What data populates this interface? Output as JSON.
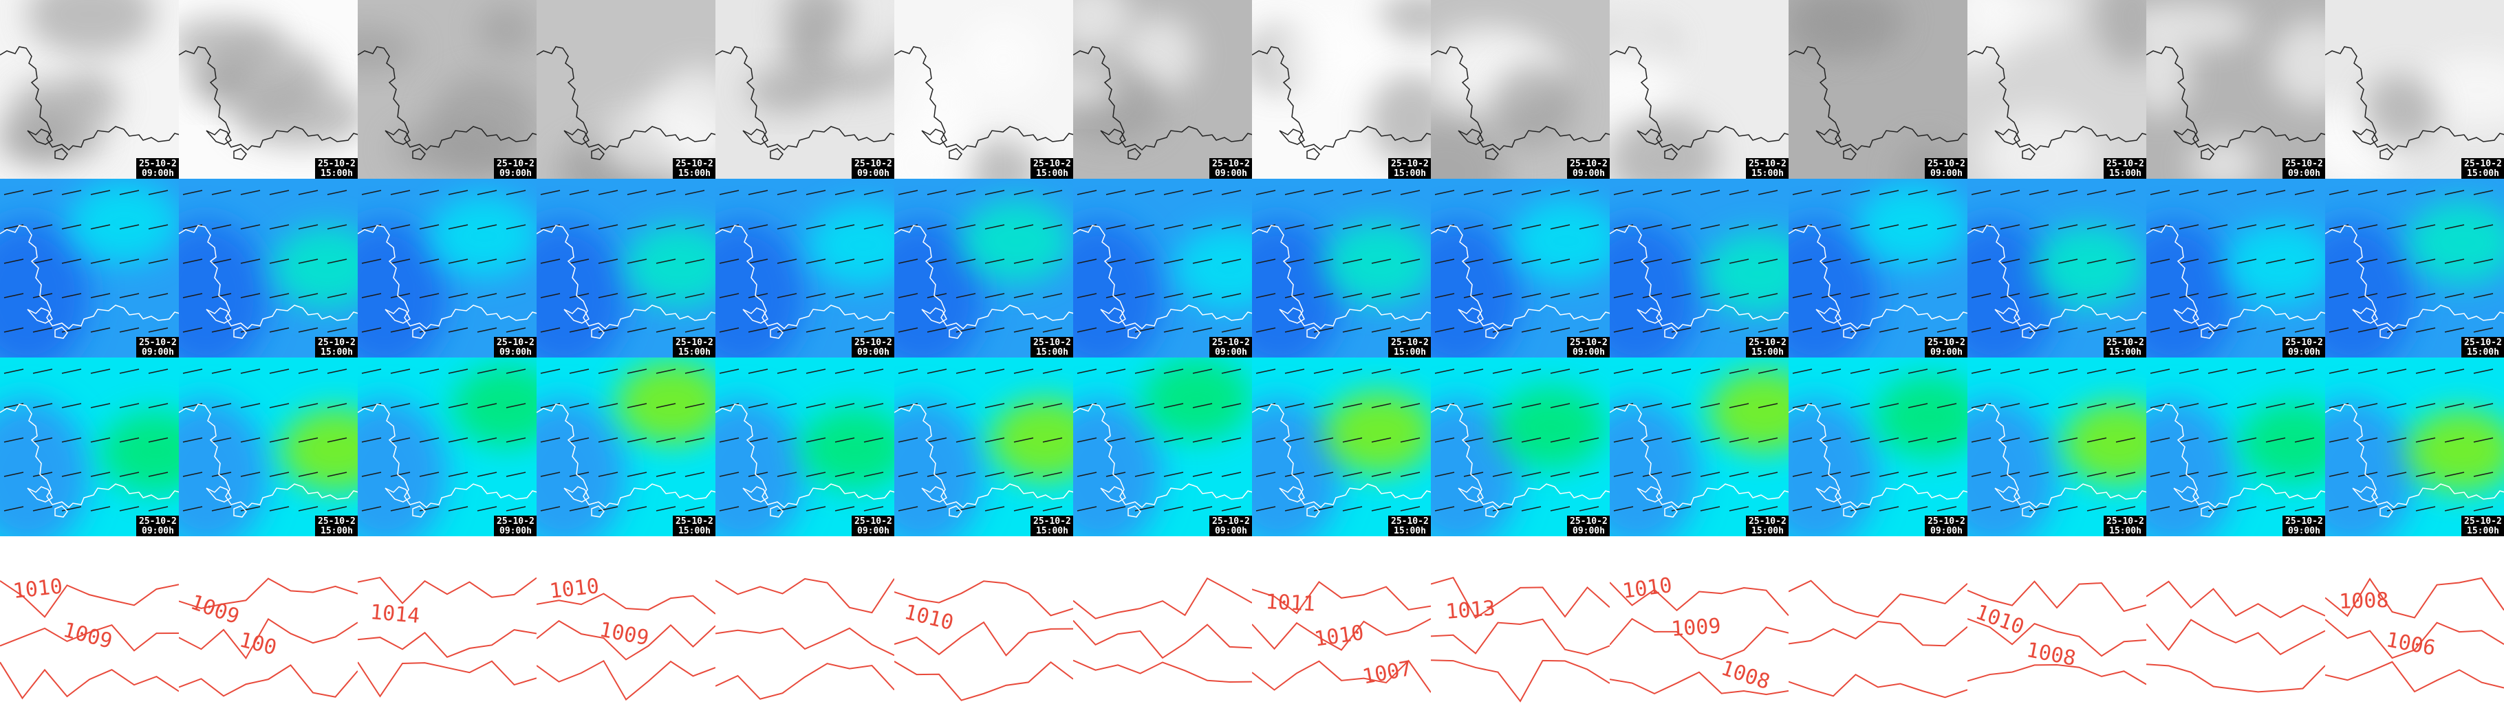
{
  "panels": [
    {
      "labels": [
        {
          "date": "25-10-2",
          "time": "09:00h"
        },
        {
          "date": "25-10-2",
          "time": "15:00h"
        },
        {
          "date": "25-10-2",
          "time": "09:00h"
        },
        {
          "date": "25-10-2",
          "time": "15:00h"
        },
        {
          "date": "25-10-2",
          "time": "09:00h"
        },
        {
          "date": "25-10-2",
          "time": "15:00h"
        },
        {
          "date": "25-10-2",
          "time": "09:00h"
        },
        {
          "date": "25-10-2",
          "time": "15:00h"
        },
        {
          "date": "25-10-2",
          "time": "09:00h"
        },
        {
          "date": "25-10-2",
          "time": "15:00h"
        },
        {
          "date": "25-10-2",
          "time": "09:00h"
        },
        {
          "date": "25-10-2",
          "time": "15:00h"
        },
        {
          "date": "25-10-2",
          "time": "09:00h"
        },
        {
          "date": "25-10-2",
          "time": "15:00h"
        }
      ]
    },
    {
      "labels": [
        {
          "date": "25-10-2",
          "time": "09:00h"
        },
        {
          "date": "25-10-2",
          "time": "15:00h"
        },
        {
          "date": "25-10-2",
          "time": "09:00h"
        },
        {
          "date": "25-10-2",
          "time": "15:00h"
        },
        {
          "date": "25-10-2",
          "time": "09:00h"
        },
        {
          "date": "25-10-2",
          "time": "15:00h"
        },
        {
          "date": "25-10-2",
          "time": "09:00h"
        },
        {
          "date": "25-10-2",
          "time": "15:00h"
        },
        {
          "date": "25-10-2",
          "time": "09:00h"
        },
        {
          "date": "25-10-2",
          "time": "15:00h"
        },
        {
          "date": "25-10-2",
          "time": "09:00h"
        },
        {
          "date": "25-10-2",
          "time": "15:00h"
        },
        {
          "date": "25-10-2",
          "time": "09:00h"
        },
        {
          "date": "25-10-2",
          "time": "15:00h"
        }
      ]
    },
    {
      "labels": [
        {
          "date": "25-10-2",
          "time": "09:00h"
        },
        {
          "date": "25-10-2",
          "time": "15:00h"
        },
        {
          "date": "25-10-2",
          "time": "09:00h"
        },
        {
          "date": "25-10-2",
          "time": "15:00h"
        },
        {
          "date": "25-10-2",
          "time": "09:00h"
        },
        {
          "date": "25-10-2",
          "time": "15:00h"
        },
        {
          "date": "25-10-2",
          "time": "09:00h"
        },
        {
          "date": "25-10-2",
          "time": "15:00h"
        },
        {
          "date": "25-10-2",
          "time": "09:00h"
        },
        {
          "date": "25-10-2",
          "time": "15:00h"
        },
        {
          "date": "25-10-2",
          "time": "09:00h"
        },
        {
          "date": "25-10-2",
          "time": "15:00h"
        },
        {
          "date": "25-10-2",
          "time": "09:00h"
        },
        {
          "date": "25-10-2",
          "time": "15:00h"
        }
      ]
    }
  ],
  "pressure_labels": [
    [
      "1010",
      "1009"
    ],
    [
      "1009",
      "100"
    ],
    [
      "1014"
    ],
    [
      "1010",
      "1009"
    ],
    [],
    [
      "1010"
    ],
    [],
    [
      "1011",
      "1010",
      "1007"
    ],
    [
      "1013"
    ],
    [
      "1010",
      "1009",
      "1008"
    ],
    [],
    [
      "1010",
      "1008"
    ],
    [],
    [
      "1008",
      "1006"
    ]
  ]
}
